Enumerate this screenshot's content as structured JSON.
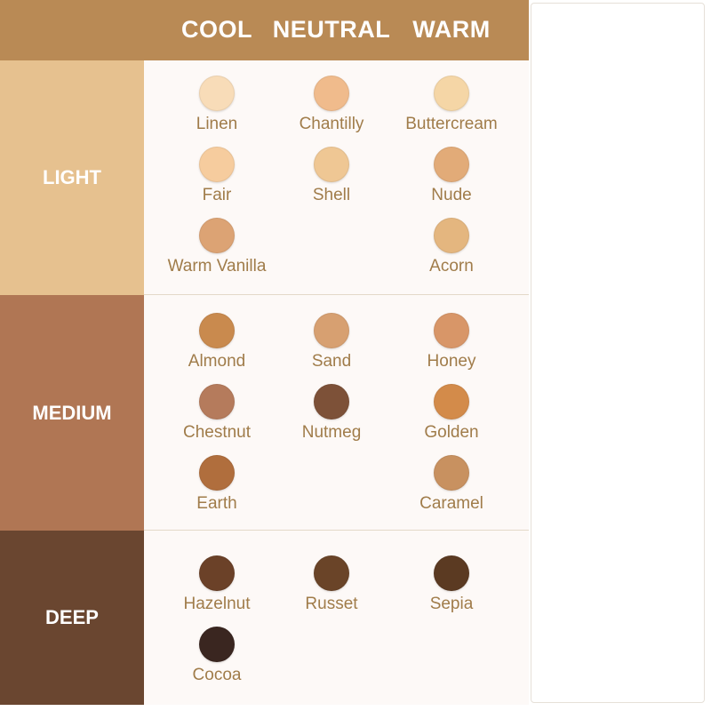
{
  "header": {
    "columns": [
      "COOL",
      "NEUTRAL",
      "WARM"
    ]
  },
  "rows": [
    {
      "label": "LIGHT",
      "color": "#e6c18f",
      "cells": [
        [
          {
            "name": "Linen",
            "color": "#f8dcb8"
          },
          {
            "name": "Fair",
            "color": "#f6cc9e"
          },
          {
            "name": "Warm Vanilla",
            "color": "#dca374"
          }
        ],
        [
          {
            "name": "Chantilly",
            "color": "#f0bb8c"
          },
          {
            "name": "Shell",
            "color": "#efc794"
          }
        ],
        [
          {
            "name": "Buttercream",
            "color": "#f5d6a6"
          },
          {
            "name": "Nude",
            "color": "#e2ab78"
          },
          {
            "name": "Acorn",
            "color": "#e4b67f"
          }
        ]
      ]
    },
    {
      "label": "MEDIUM",
      "color": "#b07654",
      "cells": [
        [
          {
            "name": "Almond",
            "color": "#c98a4e"
          },
          {
            "name": "Chestnut",
            "color": "#b57b5c"
          },
          {
            "name": "Earth",
            "color": "#b06e3d"
          }
        ],
        [
          {
            "name": "Sand",
            "color": "#d7a071"
          },
          {
            "name": "Nutmeg",
            "color": "#7d5138"
          }
        ],
        [
          {
            "name": "Honey",
            "color": "#d89668"
          },
          {
            "name": "Golden",
            "color": "#d38b4a"
          },
          {
            "name": "Caramel",
            "color": "#c89160"
          }
        ]
      ]
    },
    {
      "label": "DEEP",
      "color": "#6a4630",
      "cells": [
        [
          {
            "name": "Hazelnut",
            "color": "#6b4128"
          },
          {
            "name": "Cocoa",
            "color": "#3a2620"
          }
        ],
        [
          {
            "name": "Russet",
            "color": "#6a4428"
          }
        ],
        [
          {
            "name": "Sepia",
            "color": "#5b3a22"
          }
        ]
      ]
    }
  ]
}
